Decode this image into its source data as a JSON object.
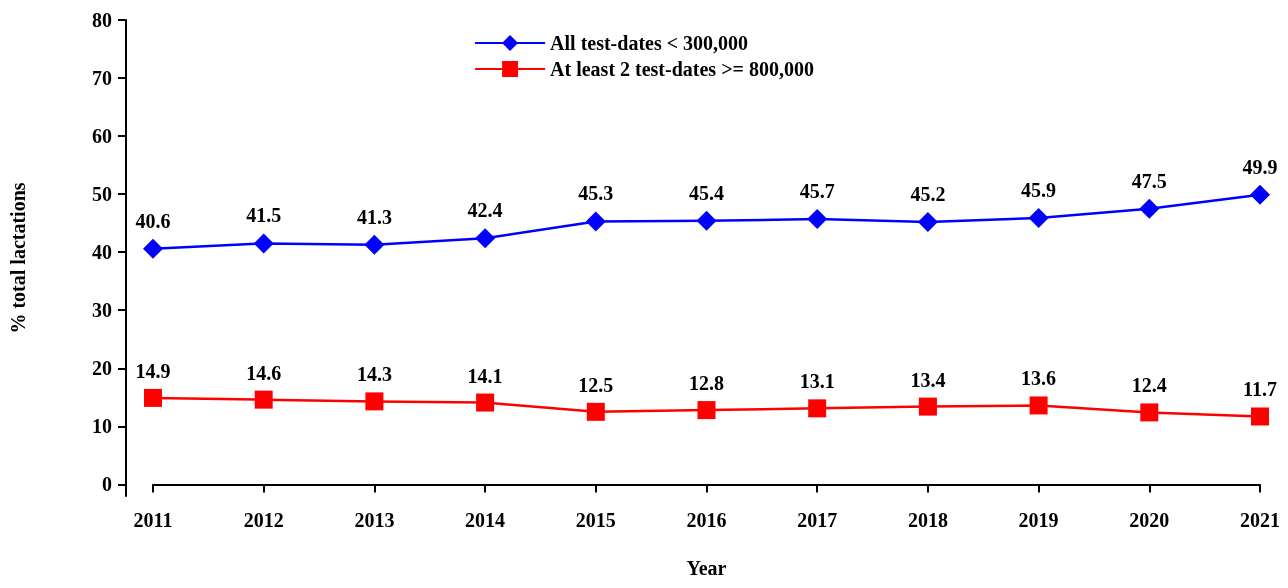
{
  "chart_data": {
    "type": "line",
    "xlabel": "Year",
    "ylabel": "% total lactations",
    "categories": [
      "2011",
      "2012",
      "2013",
      "2014",
      "2015",
      "2016",
      "2017",
      "2018",
      "2019",
      "2020",
      "2021"
    ],
    "series": [
      {
        "name": "All test-dates < 300,000",
        "color": "#0000ff",
        "marker": "diamond",
        "values": [
          40.6,
          41.5,
          41.3,
          42.4,
          45.3,
          45.4,
          45.7,
          45.2,
          45.9,
          47.5,
          49.9
        ]
      },
      {
        "name": "At least 2 test-dates >= 800,000",
        "color": "#ff0000",
        "marker": "square",
        "values": [
          14.9,
          14.6,
          14.3,
          14.1,
          12.5,
          12.8,
          13.1,
          13.4,
          13.6,
          12.4,
          11.7
        ]
      }
    ],
    "ylim": [
      -2,
      80
    ],
    "yticks": [
      0,
      10,
      20,
      30,
      40,
      50,
      60,
      70,
      80
    ],
    "data_labels": true,
    "legend": "top",
    "grid": false,
    "line_style": "solid"
  }
}
